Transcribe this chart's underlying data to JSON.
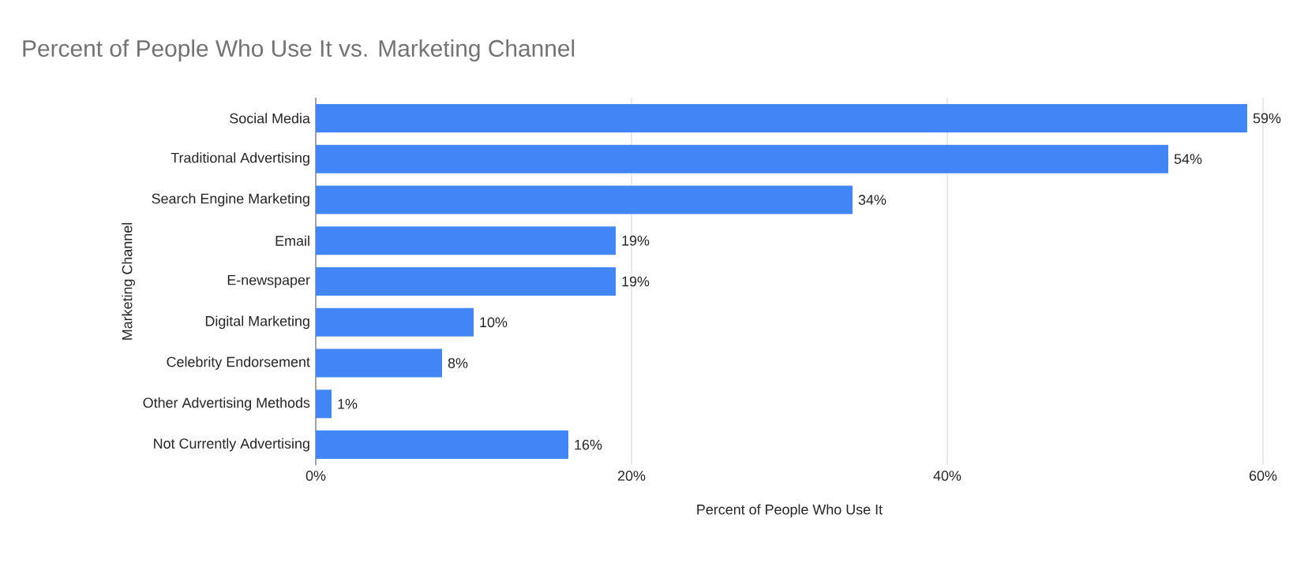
{
  "chart_data": {
    "type": "bar",
    "orientation": "horizontal",
    "title": "Percent of People Who Use It vs. Marketing Channel",
    "xlabel": "Percent of People Who Use It",
    "ylabel": "Marketing Channel",
    "categories": [
      "Social Media",
      "Traditional Advertising",
      "Search Engine Marketing",
      "Email",
      "E-newspaper",
      "Digital Marketing",
      "Celebrity Endorsement",
      "Other Advertising Methods",
      "Not Currently Advertising"
    ],
    "values": [
      59,
      54,
      34,
      19,
      19,
      10,
      8,
      1,
      16
    ],
    "value_labels": [
      "59%",
      "54%",
      "34%",
      "19%",
      "19%",
      "10%",
      "8%",
      "1%",
      "16%"
    ],
    "color": "#4285f4",
    "xlim": [
      0,
      60
    ],
    "xticks": [
      {
        "value": 0,
        "label": "0%"
      },
      {
        "value": 20,
        "label": "20%"
      },
      {
        "value": 40,
        "label": "40%"
      },
      {
        "value": 60,
        "label": "60%"
      }
    ],
    "grid": "x"
  }
}
